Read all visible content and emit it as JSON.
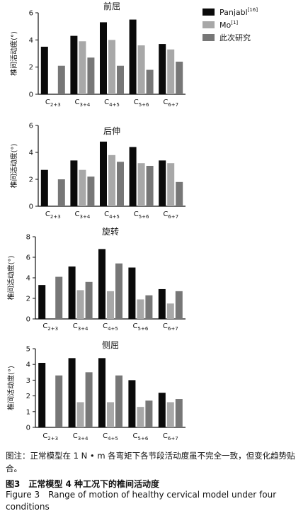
{
  "legend": [
    {
      "name": "Panjabl",
      "ref": "[16]",
      "color": "#0a0a0a"
    },
    {
      "name": "Mo",
      "ref": "[1]",
      "color": "#a8a8a8"
    },
    {
      "name": "此次研究",
      "ref": "",
      "color": "#777777"
    }
  ],
  "chart_data": [
    {
      "type": "bar",
      "title": "前屈",
      "ylabel": "椎间活动度(°)",
      "ylim": [
        0,
        6
      ],
      "yticks": [
        0,
        2,
        4,
        6
      ],
      "categories": [
        {
          "main": "C",
          "sub": "2+3"
        },
        {
          "main": "C",
          "sub": "3+4"
        },
        {
          "main": "C",
          "sub": "4+5"
        },
        {
          "main": "C",
          "sub": "5+6"
        },
        {
          "main": "C",
          "sub": "6+7"
        }
      ],
      "series": [
        {
          "name": "Panjabl[16]",
          "values": [
            3.5,
            4.3,
            5.3,
            5.5,
            3.7
          ]
        },
        {
          "name": "Mo[1]",
          "values": [
            null,
            3.9,
            4.0,
            3.6,
            3.3
          ]
        },
        {
          "name": "此次研究",
          "values": [
            2.1,
            2.7,
            2.1,
            1.8,
            2.4
          ]
        }
      ]
    },
    {
      "type": "bar",
      "title": "后伸",
      "ylabel": "椎间活动度(°)",
      "ylim": [
        0,
        6
      ],
      "yticks": [
        0,
        2,
        4,
        6
      ],
      "categories": [
        {
          "main": "C",
          "sub": "2+3"
        },
        {
          "main": "C",
          "sub": "3+4"
        },
        {
          "main": "C",
          "sub": "4+5"
        },
        {
          "main": "C",
          "sub": "5+6"
        },
        {
          "main": "C",
          "sub": "6+7"
        }
      ],
      "series": [
        {
          "name": "Panjabl[16]",
          "values": [
            2.7,
            3.4,
            4.8,
            4.4,
            3.4
          ]
        },
        {
          "name": "Mo[1]",
          "values": [
            null,
            2.7,
            3.8,
            3.2,
            3.2
          ]
        },
        {
          "name": "此次研究",
          "values": [
            2.0,
            2.2,
            3.3,
            3.0,
            1.8
          ]
        }
      ]
    },
    {
      "type": "bar",
      "title": "旋转",
      "ylabel": "椎间活动度(°)",
      "ylim": [
        0,
        8
      ],
      "yticks": [
        0,
        2,
        4,
        6,
        8
      ],
      "categories": [
        {
          "main": "C",
          "sub": "2+3"
        },
        {
          "main": "C",
          "sub": "3+4"
        },
        {
          "main": "C",
          "sub": "4+5"
        },
        {
          "main": "C",
          "sub": "5+6"
        },
        {
          "main": "C",
          "sub": "6+7"
        }
      ],
      "series": [
        {
          "name": "Panjabl[16]",
          "values": [
            3.3,
            5.1,
            6.8,
            5.0,
            2.9
          ]
        },
        {
          "name": "Mo[1]",
          "values": [
            null,
            2.8,
            2.7,
            1.9,
            1.5
          ]
        },
        {
          "name": "此次研究",
          "values": [
            4.1,
            3.6,
            5.4,
            2.3,
            2.7
          ]
        }
      ]
    },
    {
      "type": "bar",
      "title": "侧屈",
      "ylabel": "椎间活动度(°)",
      "ylim": [
        0,
        5
      ],
      "yticks": [
        0,
        1,
        2,
        3,
        4,
        5
      ],
      "categories": [
        {
          "main": "C",
          "sub": "2+3"
        },
        {
          "main": "C",
          "sub": "3+4"
        },
        {
          "main": "C",
          "sub": "4+5"
        },
        {
          "main": "C",
          "sub": "5+6"
        },
        {
          "main": "C",
          "sub": "6+7"
        }
      ],
      "series": [
        {
          "name": "Panjabl[16]",
          "values": [
            4.1,
            4.4,
            4.4,
            3.0,
            2.2
          ]
        },
        {
          "name": "Mo[1]",
          "values": [
            null,
            1.6,
            1.6,
            1.3,
            1.6
          ]
        },
        {
          "name": "此次研究",
          "values": [
            3.3,
            3.5,
            3.3,
            1.7,
            1.8
          ]
        }
      ]
    }
  ],
  "captions": {
    "note": "图注：正常模型在 1 N • m 各弯矩下各节段活动度虽不完全一致，但变化趋势贴合。",
    "title_cn": "图3　正常模型 4 种工况下的椎间活动度",
    "title_en": "Figure 3　Range of motion of healthy cervical model under four conditions"
  }
}
